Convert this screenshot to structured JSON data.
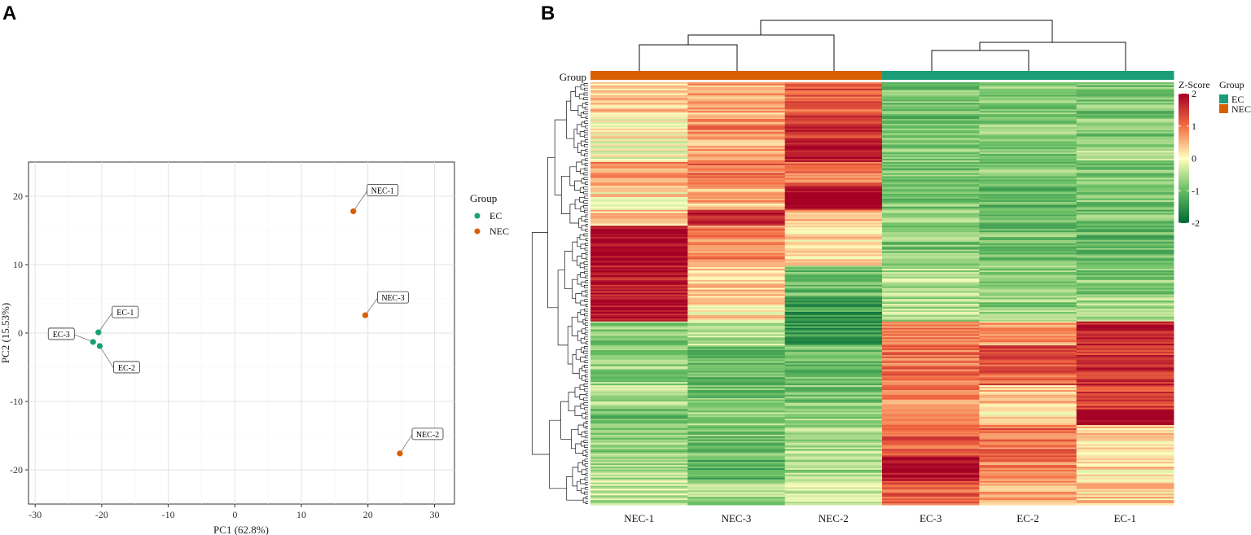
{
  "chart_data": [
    {
      "type": "scatter",
      "panel": "A",
      "xlabel": "PC1 (62.8%)",
      "ylabel": "PC2 (15.53%)",
      "xlim": [
        -31,
        33
      ],
      "ylim": [
        -25,
        25
      ],
      "xticks": [
        -30,
        -20,
        -10,
        0,
        10,
        20,
        30
      ],
      "yticks": [
        -20,
        -10,
        0,
        10,
        20
      ],
      "grid": true,
      "legend_title": "Group",
      "legend_position": "right",
      "groups": [
        {
          "name": "EC",
          "color": "#1b9e77"
        },
        {
          "name": "NEC",
          "color": "#d95f02"
        }
      ],
      "points": [
        {
          "label": "EC-1",
          "group": "EC",
          "x": -20.5,
          "y": 0.1
        },
        {
          "label": "EC-2",
          "group": "EC",
          "x": -20.3,
          "y": -1.9
        },
        {
          "label": "EC-3",
          "group": "EC",
          "x": -21.3,
          "y": -1.3
        },
        {
          "label": "NEC-1",
          "group": "NEC",
          "x": 17.8,
          "y": 17.8
        },
        {
          "label": "NEC-3",
          "group": "NEC",
          "x": 19.6,
          "y": 2.6
        },
        {
          "label": "NEC-2",
          "group": "NEC",
          "x": 24.8,
          "y": -17.6
        }
      ]
    },
    {
      "type": "heatmap",
      "panel": "B",
      "columns": [
        "NEC-1",
        "NEC-3",
        "NEC-2",
        "EC-3",
        "EC-2",
        "EC-1"
      ],
      "column_groups": [
        "NEC",
        "NEC",
        "NEC",
        "EC",
        "EC",
        "EC"
      ],
      "group_annotation_label": "Group",
      "group_colors": {
        "EC": "#1b9e77",
        "NEC": "#d95f02"
      },
      "legend_groups": [
        "EC",
        "NEC"
      ],
      "colorbar_title": "Z-Score",
      "colorbar_range": [
        -2,
        2
      ],
      "colorbar_ticks": [
        2,
        1,
        0,
        -1,
        -2
      ],
      "colorbar_colors": [
        "#006837",
        "#66bd63",
        "#ffffbf",
        "#f46d43",
        "#a50026"
      ],
      "legend_title": "Group",
      "row_blocks": [
        {
          "rows": 20,
          "z": [
            0.4,
            0.6,
            1.2,
            -0.9,
            -0.8,
            -0.9
          ]
        },
        {
          "rows": 15,
          "z": [
            0.1,
            0.8,
            1.5,
            -1.0,
            -0.7,
            -0.8
          ]
        },
        {
          "rows": 15,
          "z": [
            -0.1,
            0.6,
            1.9,
            -0.8,
            -0.9,
            -0.6
          ]
        },
        {
          "rows": 15,
          "z": [
            0.8,
            1.0,
            1.0,
            -0.9,
            -0.8,
            -0.8
          ]
        },
        {
          "rows": 15,
          "z": [
            0.2,
            0.5,
            2.1,
            -0.9,
            -1.0,
            -0.8
          ]
        },
        {
          "rows": 10,
          "z": [
            0.3,
            1.8,
            0.5,
            -0.6,
            -1.1,
            -0.9
          ]
        },
        {
          "rows": 25,
          "z": [
            2.0,
            0.8,
            0.2,
            -0.8,
            -0.9,
            -1.0
          ]
        },
        {
          "rows": 20,
          "z": [
            1.8,
            0.3,
            -1.0,
            -0.5,
            -0.7,
            -0.8
          ]
        },
        {
          "rows": 15,
          "z": [
            1.9,
            0.2,
            -1.4,
            -0.5,
            -0.7,
            -0.6
          ]
        },
        {
          "rows": 15,
          "z": [
            -0.8,
            -0.4,
            -1.4,
            0.9,
            0.6,
            1.7
          ]
        },
        {
          "rows": 25,
          "z": [
            -0.7,
            -1.0,
            -1.0,
            1.0,
            1.2,
            1.5
          ]
        },
        {
          "rows": 15,
          "z": [
            -0.6,
            -0.9,
            -0.8,
            0.9,
            0.4,
            1.4
          ]
        },
        {
          "rows": 10,
          "z": [
            -1.0,
            -0.7,
            -0.7,
            0.8,
            0.2,
            2.1
          ]
        },
        {
          "rows": 20,
          "z": [
            -0.7,
            -0.9,
            -0.6,
            1.2,
            1.0,
            0.3
          ]
        },
        {
          "rows": 15,
          "z": [
            -0.5,
            -1.1,
            -0.6,
            2.0,
            0.9,
            0.2
          ]
        },
        {
          "rows": 15,
          "z": [
            -0.4,
            -0.6,
            -0.3,
            1.1,
            0.6,
            0.3
          ]
        }
      ]
    }
  ]
}
